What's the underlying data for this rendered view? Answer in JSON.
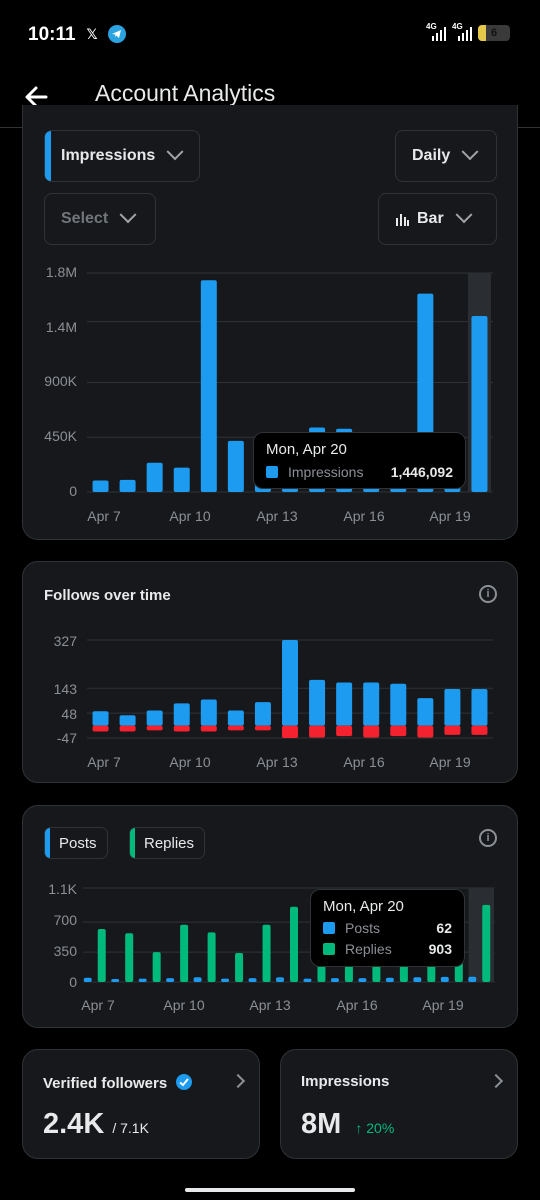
{
  "status": {
    "time": "10:11",
    "net1": "4G",
    "net2": "4G",
    "battery": "6"
  },
  "header": {
    "title": "Account Analytics"
  },
  "impressions_card": {
    "metric_select": "Impressions",
    "period_select": "Daily",
    "compare_select": "Select",
    "chart_type_select": "Bar",
    "y_ticks": [
      "1.8M",
      "1.4M",
      "900K",
      "450K",
      "0"
    ],
    "x_ticks": [
      "Apr 7",
      "Apr 10",
      "Apr 13",
      "Apr 16",
      "Apr 19"
    ],
    "tooltip": {
      "title": "Mon, Apr 20",
      "series": "Impressions",
      "value": "1,446,092"
    }
  },
  "follows_card": {
    "title": "Follows over time",
    "y_ticks": [
      "327",
      "143",
      "48",
      "-47"
    ],
    "x_ticks": [
      "Apr 7",
      "Apr 10",
      "Apr 13",
      "Apr 16",
      "Apr 19"
    ]
  },
  "posts_card": {
    "legend_posts": "Posts",
    "legend_replies": "Replies",
    "y_ticks": [
      "1.1K",
      "700",
      "350",
      "0"
    ],
    "x_ticks": [
      "Apr 7",
      "Apr 10",
      "Apr 13",
      "Apr 16",
      "Apr 19"
    ],
    "tooltip": {
      "title": "Mon, Apr 20",
      "posts_label": "Posts",
      "posts_value": "62",
      "replies_label": "Replies",
      "replies_value": "903"
    }
  },
  "stats": {
    "verified": {
      "title": "Verified followers",
      "value": "2.4K",
      "sub": "/ 7.1K"
    },
    "impressions": {
      "title": "Impressions",
      "value": "8M",
      "change": "↑ 20%"
    }
  },
  "colors": {
    "blue": "#1d9bf0",
    "red": "#f4212e",
    "green": "#00ba7c",
    "card": "#16181c"
  },
  "chart_data": [
    {
      "type": "bar",
      "categories": [
        "Apr 6",
        "Apr 7",
        "Apr 8",
        "Apr 9",
        "Apr 10",
        "Apr 11",
        "Apr 12",
        "Apr 13",
        "Apr 14",
        "Apr 15",
        "Apr 16",
        "Apr 17",
        "Apr 18",
        "Apr 19",
        "Apr 20"
      ],
      "series": [
        {
          "name": "Impressions",
          "values": [
            95000,
            100000,
            240000,
            200000,
            1740000,
            420000,
            380000,
            260000,
            530000,
            520000,
            240000,
            230000,
            1630000,
            110000,
            1446092
          ]
        }
      ],
      "ylim": [
        0,
        1800000
      ],
      "ticks": [
        0,
        450000,
        900000,
        1400000,
        1800000
      ]
    },
    {
      "type": "bar",
      "categories": [
        "Apr 6",
        "Apr 7",
        "Apr 8",
        "Apr 9",
        "Apr 10",
        "Apr 11",
        "Apr 12",
        "Apr 13",
        "Apr 14",
        "Apr 15",
        "Apr 16",
        "Apr 17",
        "Apr 18",
        "Apr 19",
        "Apr 20"
      ],
      "series": [
        {
          "values": [
            55,
            40,
            58,
            85,
            100,
            58,
            90,
            327,
            175,
            165,
            165,
            160,
            105,
            140,
            140
          ]
        },
        {
          "values": [
            -22,
            -22,
            -18,
            -22,
            -22,
            -18,
            -18,
            -47,
            -45,
            -40,
            -45,
            -40,
            -45,
            -35,
            -35
          ]
        }
      ],
      "ylim": [
        -47,
        327
      ],
      "ticks": [
        -47,
        48,
        143,
        327
      ]
    },
    {
      "type": "bar",
      "categories": [
        "Apr 6",
        "Apr 7",
        "Apr 8",
        "Apr 9",
        "Apr 10",
        "Apr 11",
        "Apr 12",
        "Apr 13",
        "Apr 14",
        "Apr 15",
        "Apr 16",
        "Apr 17",
        "Apr 18",
        "Apr 19",
        "Apr 20"
      ],
      "series": [
        {
          "name": "Posts",
          "values": [
            50,
            35,
            40,
            45,
            55,
            40,
            45,
            55,
            40,
            45,
            45,
            50,
            55,
            60,
            62
          ]
        },
        {
          "name": "Replies",
          "values": [
            620,
            570,
            350,
            670,
            580,
            340,
            670,
            880,
            900,
            900,
            900,
            900,
            900,
            900,
            903
          ]
        }
      ],
      "ylim": [
        0,
        1100
      ],
      "ticks": [
        0,
        350,
        700,
        1100
      ]
    }
  ]
}
